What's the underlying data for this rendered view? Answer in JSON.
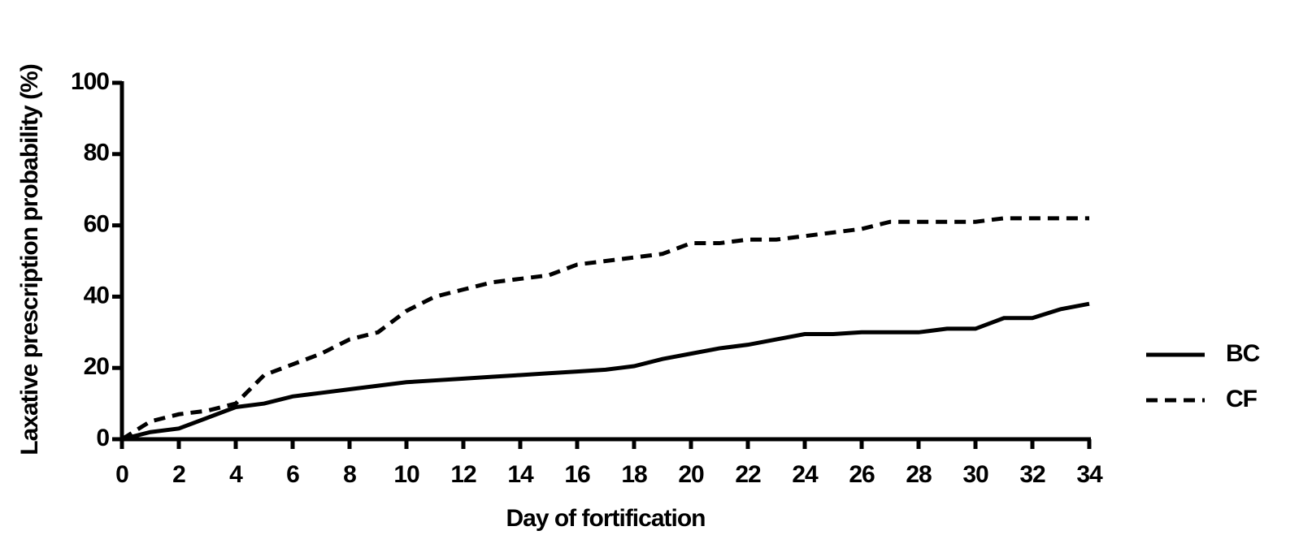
{
  "chart_data": {
    "type": "line",
    "x_label": "Day of fortification",
    "y_label": "Laxative prescription probability (%)",
    "x": [
      0,
      1,
      2,
      3,
      4,
      5,
      6,
      7,
      8,
      9,
      10,
      11,
      12,
      13,
      14,
      15,
      16,
      17,
      18,
      19,
      20,
      21,
      22,
      23,
      24,
      25,
      26,
      27,
      28,
      29,
      30,
      31,
      32,
      33,
      34
    ],
    "series": [
      {
        "name": "BC",
        "color": "#000000",
        "dash": false,
        "values": [
          0,
          2,
          3,
          6,
          9,
          10,
          12,
          13,
          14,
          15,
          16,
          16.5,
          17,
          17.5,
          18,
          18.5,
          19,
          19.5,
          20.5,
          22.5,
          24,
          25.5,
          26.5,
          28,
          29.5,
          29.5,
          30,
          30,
          30,
          31,
          31,
          34,
          34,
          36.5,
          38
        ]
      },
      {
        "name": "CF",
        "color": "#000000",
        "dash": true,
        "values": [
          0,
          5,
          7,
          8,
          10,
          18,
          21,
          24,
          28,
          30,
          36,
          40,
          42,
          44,
          45,
          46,
          49,
          50,
          51,
          52,
          55,
          55,
          56,
          56,
          57,
          58,
          59,
          61,
          61,
          61,
          61,
          62,
          62,
          62,
          62
        ]
      }
    ],
    "xlim": [
      0,
      34
    ],
    "xticks": [
      0,
      2,
      4,
      6,
      8,
      10,
      12,
      14,
      16,
      18,
      20,
      22,
      24,
      26,
      28,
      30,
      32,
      34
    ],
    "ylim": [
      0,
      100
    ],
    "yticks": [
      0,
      20,
      40,
      60,
      80,
      100
    ],
    "legend": "right"
  }
}
